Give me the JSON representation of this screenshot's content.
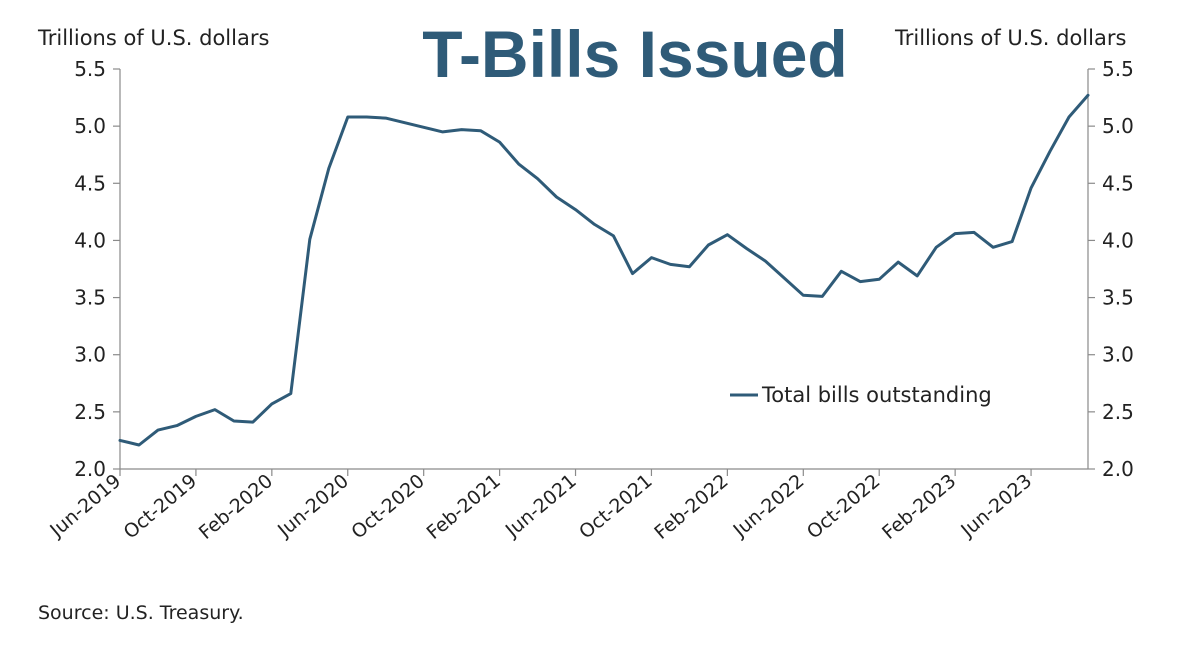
{
  "chart_data": {
    "type": "line",
    "title": "T-Bills Issued",
    "ylabel_left": "Trillions of U.S. dollars",
    "ylabel_right": "Trillions  of U.S. dollars",
    "ylim": [
      2.0,
      5.5
    ],
    "yticks": [
      "2.0",
      "2.5",
      "3.0",
      "3.5",
      "4.0",
      "4.5",
      "5.0",
      "5.5"
    ],
    "xticks": [
      "Jun-2019",
      "Oct-2019",
      "Feb-2020",
      "Jun-2020",
      "Oct-2020",
      "Feb-2021",
      "Jun-2021",
      "Oct-2021",
      "Feb-2022",
      "Jun-2022",
      "Oct-2022",
      "Feb-2023",
      "Jun-2023"
    ],
    "legend": "top-right inside plot",
    "source": "Source: U.S. Treasury.",
    "series": [
      {
        "name": "Total bills outstanding",
        "color": "#2f5b78",
        "x": [
          "Jun-2019",
          "Jul-2019",
          "Aug-2019",
          "Sep-2019",
          "Oct-2019",
          "Nov-2019",
          "Dec-2019",
          "Jan-2020",
          "Feb-2020",
          "Mar-2020",
          "Apr-2020",
          "May-2020",
          "Jun-2020",
          "Jul-2020",
          "Aug-2020",
          "Sep-2020",
          "Oct-2020",
          "Nov-2020",
          "Dec-2020",
          "Jan-2021",
          "Feb-2021",
          "Mar-2021",
          "Apr-2021",
          "May-2021",
          "Jun-2021",
          "Jul-2021",
          "Aug-2021",
          "Sep-2021",
          "Oct-2021",
          "Nov-2021",
          "Dec-2021",
          "Jan-2022",
          "Feb-2022",
          "Mar-2022",
          "Apr-2022",
          "May-2022",
          "Jun-2022",
          "Jul-2022",
          "Aug-2022",
          "Sep-2022",
          "Oct-2022",
          "Nov-2022",
          "Dec-2022",
          "Jan-2023",
          "Feb-2023",
          "Mar-2023",
          "Apr-2023",
          "May-2023",
          "Jun-2023",
          "Jul-2023",
          "Aug-2023",
          "Sep-2023"
        ],
        "values": [
          2.25,
          2.21,
          2.34,
          2.38,
          2.46,
          2.52,
          2.42,
          2.41,
          2.57,
          2.66,
          4.01,
          4.63,
          5.08,
          5.08,
          5.07,
          5.03,
          4.99,
          4.95,
          4.97,
          4.96,
          4.86,
          4.67,
          4.54,
          4.38,
          4.27,
          4.14,
          4.04,
          3.71,
          3.85,
          3.79,
          3.77,
          3.96,
          4.05,
          3.93,
          3.82,
          3.67,
          3.52,
          3.51,
          3.73,
          3.64,
          3.66,
          3.81,
          3.69,
          3.94,
          4.06,
          4.07,
          3.94,
          3.99,
          4.46,
          4.78,
          5.08,
          5.27
        ]
      }
    ]
  }
}
